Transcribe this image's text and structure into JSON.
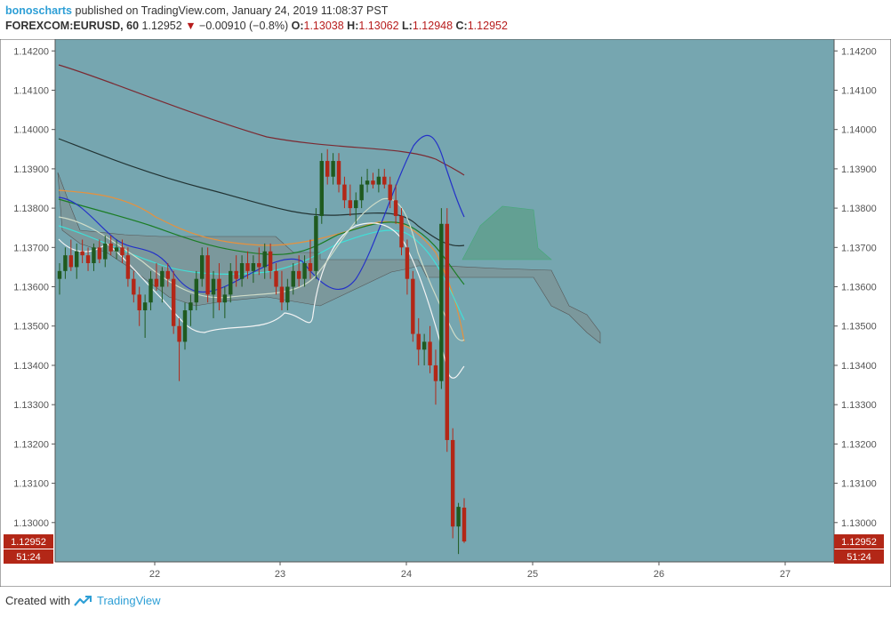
{
  "header": {
    "author": "bonoscharts",
    "published_text": "published on TradingView.com, January 24, 2019 11:08:37 PST",
    "symbol": "FOREXCOM:EURUSD, 60",
    "last": "1.12952",
    "change": "−0.00910 (−0.8%)",
    "o_label": "O:",
    "o_value": "1.13038",
    "h_label": "H:",
    "h_value": "1.13062",
    "l_label": "L:",
    "l_value": "1.12948",
    "c_label": "C:",
    "c_value": "1.12952"
  },
  "footer": {
    "created_with": "Created with",
    "brand": "TradingView"
  },
  "colors": {
    "background": "#76a6b0",
    "up": "#1f5a1f",
    "down": "#b32717",
    "price_label": "#b32717",
    "cloud": "#7f8c8d",
    "cloud_green": "#5b9e87"
  },
  "chart_data": {
    "type": "candlestick",
    "ylim": [
      1.129,
      1.1423
    ],
    "y_ticks": [
      "1.14200",
      "1.14100",
      "1.14000",
      "1.13900",
      "1.13800",
      "1.13700",
      "1.13600",
      "1.13500",
      "1.13400",
      "1.13300",
      "1.13200",
      "1.13100",
      "1.13000"
    ],
    "x_ticks": [
      "22",
      "23",
      "24",
      "25",
      "26",
      "27"
    ],
    "price_label": "1.12952",
    "countdown_label": "51:24",
    "candles": [
      {
        "o": 1.1362,
        "h": 1.1366,
        "l": 1.1358,
        "c": 1.1364
      },
      {
        "o": 1.1364,
        "h": 1.137,
        "l": 1.1362,
        "c": 1.1368
      },
      {
        "o": 1.1368,
        "h": 1.1372,
        "l": 1.1364,
        "c": 1.1365
      },
      {
        "o": 1.1365,
        "h": 1.1371,
        "l": 1.1362,
        "c": 1.1369
      },
      {
        "o": 1.1369,
        "h": 1.1372,
        "l": 1.1366,
        "c": 1.1368
      },
      {
        "o": 1.1368,
        "h": 1.137,
        "l": 1.1364,
        "c": 1.1366
      },
      {
        "o": 1.1366,
        "h": 1.1371,
        "l": 1.1364,
        "c": 1.137
      },
      {
        "o": 1.137,
        "h": 1.1372,
        "l": 1.1366,
        "c": 1.1367
      },
      {
        "o": 1.1367,
        "h": 1.1373,
        "l": 1.1365,
        "c": 1.1371
      },
      {
        "o": 1.1371,
        "h": 1.1373,
        "l": 1.1368,
        "c": 1.1369
      },
      {
        "o": 1.1369,
        "h": 1.1372,
        "l": 1.1367,
        "c": 1.137
      },
      {
        "o": 1.137,
        "h": 1.1372,
        "l": 1.1366,
        "c": 1.1368
      },
      {
        "o": 1.1368,
        "h": 1.137,
        "l": 1.136,
        "c": 1.1362
      },
      {
        "o": 1.1362,
        "h": 1.1364,
        "l": 1.1356,
        "c": 1.1358
      },
      {
        "o": 1.1358,
        "h": 1.136,
        "l": 1.135,
        "c": 1.1354
      },
      {
        "o": 1.1354,
        "h": 1.1358,
        "l": 1.1347,
        "c": 1.1356
      },
      {
        "o": 1.1356,
        "h": 1.1364,
        "l": 1.1354,
        "c": 1.1362
      },
      {
        "o": 1.1362,
        "h": 1.1366,
        "l": 1.1359,
        "c": 1.136
      },
      {
        "o": 1.136,
        "h": 1.1365,
        "l": 1.1356,
        "c": 1.1364
      },
      {
        "o": 1.1364,
        "h": 1.1366,
        "l": 1.136,
        "c": 1.1362
      },
      {
        "o": 1.1362,
        "h": 1.1364,
        "l": 1.1348,
        "c": 1.135
      },
      {
        "o": 1.135,
        "h": 1.1352,
        "l": 1.1336,
        "c": 1.1346
      },
      {
        "o": 1.1346,
        "h": 1.1356,
        "l": 1.1344,
        "c": 1.1354
      },
      {
        "o": 1.1354,
        "h": 1.1358,
        "l": 1.135,
        "c": 1.1356
      },
      {
        "o": 1.1356,
        "h": 1.1364,
        "l": 1.1354,
        "c": 1.1362
      },
      {
        "o": 1.1362,
        "h": 1.137,
        "l": 1.136,
        "c": 1.1368
      },
      {
        "o": 1.1368,
        "h": 1.137,
        "l": 1.1356,
        "c": 1.1358
      },
      {
        "o": 1.1358,
        "h": 1.1364,
        "l": 1.1352,
        "c": 1.1362
      },
      {
        "o": 1.1362,
        "h": 1.1366,
        "l": 1.1354,
        "c": 1.1356
      },
      {
        "o": 1.1356,
        "h": 1.136,
        "l": 1.1352,
        "c": 1.1358
      },
      {
        "o": 1.1358,
        "h": 1.1366,
        "l": 1.1356,
        "c": 1.1364
      },
      {
        "o": 1.1364,
        "h": 1.1368,
        "l": 1.136,
        "c": 1.1362
      },
      {
        "o": 1.1362,
        "h": 1.1368,
        "l": 1.136,
        "c": 1.1366
      },
      {
        "o": 1.1366,
        "h": 1.1369,
        "l": 1.1362,
        "c": 1.1364
      },
      {
        "o": 1.1364,
        "h": 1.1368,
        "l": 1.1361,
        "c": 1.1366
      },
      {
        "o": 1.1366,
        "h": 1.137,
        "l": 1.1363,
        "c": 1.1365
      },
      {
        "o": 1.1365,
        "h": 1.1371,
        "l": 1.1362,
        "c": 1.1369
      },
      {
        "o": 1.1369,
        "h": 1.1371,
        "l": 1.1362,
        "c": 1.1364
      },
      {
        "o": 1.1364,
        "h": 1.1366,
        "l": 1.1358,
        "c": 1.136
      },
      {
        "o": 1.136,
        "h": 1.1364,
        "l": 1.1354,
        "c": 1.1356
      },
      {
        "o": 1.1356,
        "h": 1.1362,
        "l": 1.1354,
        "c": 1.136
      },
      {
        "o": 1.136,
        "h": 1.1366,
        "l": 1.1358,
        "c": 1.1364
      },
      {
        "o": 1.1364,
        "h": 1.1368,
        "l": 1.136,
        "c": 1.1362
      },
      {
        "o": 1.1362,
        "h": 1.1368,
        "l": 1.136,
        "c": 1.1366
      },
      {
        "o": 1.1366,
        "h": 1.1372,
        "l": 1.1362,
        "c": 1.1364
      },
      {
        "o": 1.1364,
        "h": 1.138,
        "l": 1.1362,
        "c": 1.1378
      },
      {
        "o": 1.1378,
        "h": 1.1394,
        "l": 1.1376,
        "c": 1.1392
      },
      {
        "o": 1.1392,
        "h": 1.1395,
        "l": 1.1386,
        "c": 1.1388
      },
      {
        "o": 1.1388,
        "h": 1.1394,
        "l": 1.1386,
        "c": 1.1392
      },
      {
        "o": 1.1392,
        "h": 1.1394,
        "l": 1.1384,
        "c": 1.1386
      },
      {
        "o": 1.1386,
        "h": 1.1388,
        "l": 1.138,
        "c": 1.1382
      },
      {
        "o": 1.1382,
        "h": 1.1386,
        "l": 1.1378,
        "c": 1.138
      },
      {
        "o": 1.138,
        "h": 1.1384,
        "l": 1.1376,
        "c": 1.1382
      },
      {
        "o": 1.1382,
        "h": 1.1388,
        "l": 1.138,
        "c": 1.1386
      },
      {
        "o": 1.1386,
        "h": 1.139,
        "l": 1.1384,
        "c": 1.1387
      },
      {
        "o": 1.1387,
        "h": 1.1389,
        "l": 1.1385,
        "c": 1.1386
      },
      {
        "o": 1.1386,
        "h": 1.139,
        "l": 1.1384,
        "c": 1.1388
      },
      {
        "o": 1.1388,
        "h": 1.139,
        "l": 1.1385,
        "c": 1.1386
      },
      {
        "o": 1.1386,
        "h": 1.1388,
        "l": 1.138,
        "c": 1.1382
      },
      {
        "o": 1.1382,
        "h": 1.1386,
        "l": 1.1376,
        "c": 1.1378
      },
      {
        "o": 1.1378,
        "h": 1.138,
        "l": 1.1368,
        "c": 1.137
      },
      {
        "o": 1.137,
        "h": 1.1372,
        "l": 1.1358,
        "c": 1.1362
      },
      {
        "o": 1.1362,
        "h": 1.1364,
        "l": 1.1346,
        "c": 1.1348
      },
      {
        "o": 1.1348,
        "h": 1.1352,
        "l": 1.134,
        "c": 1.1344
      },
      {
        "o": 1.1344,
        "h": 1.1348,
        "l": 1.134,
        "c": 1.1346
      },
      {
        "o": 1.1346,
        "h": 1.135,
        "l": 1.1338,
        "c": 1.134
      },
      {
        "o": 1.134,
        "h": 1.1344,
        "l": 1.133,
        "c": 1.1336
      },
      {
        "o": 1.1336,
        "h": 1.138,
        "l": 1.1334,
        "c": 1.1376
      },
      {
        "o": 1.1376,
        "h": 1.138,
        "l": 1.1318,
        "c": 1.1321
      },
      {
        "o": 1.1321,
        "h": 1.1324,
        "l": 1.1296,
        "c": 1.1299
      },
      {
        "o": 1.1299,
        "h": 1.1305,
        "l": 1.1292,
        "c": 1.1304
      },
      {
        "o": 1.13038,
        "h": 1.13062,
        "l": 1.12948,
        "c": 1.12952
      }
    ]
  }
}
